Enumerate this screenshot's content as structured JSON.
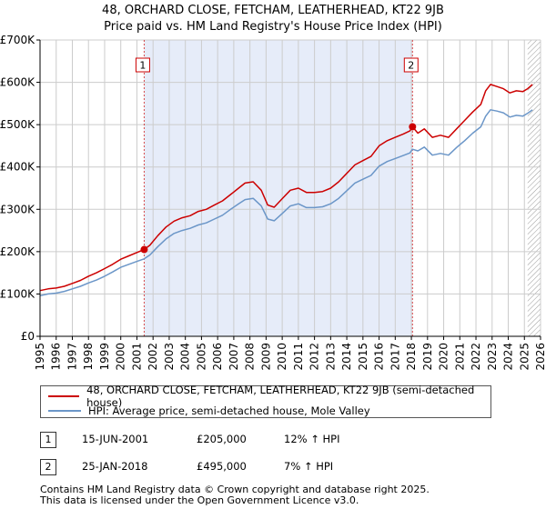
{
  "title": "48, ORCHARD CLOSE, FETCHAM, LEATHERHEAD, KT22 9JB",
  "subtitle": "Price paid vs. HM Land Registry's House Price Index (HPI)",
  "colors": {
    "property": "#cc0000",
    "hpi": "#6b96c8",
    "shade": "#e6ecf9",
    "grid": "#cccccc",
    "hatch": "#999999"
  },
  "chart_data": {
    "type": "line",
    "xlabel": "",
    "ylabel": "",
    "xlim": [
      1995,
      2026
    ],
    "ylim": [
      0,
      700000
    ],
    "y_ticks": [
      {
        "value": 0,
        "label": "£0"
      },
      {
        "value": 100000,
        "label": "£100K"
      },
      {
        "value": 200000,
        "label": "£200K"
      },
      {
        "value": 300000,
        "label": "£300K"
      },
      {
        "value": 400000,
        "label": "£400K"
      },
      {
        "value": 500000,
        "label": "£500K"
      },
      {
        "value": 600000,
        "label": "£600K"
      },
      {
        "value": 700000,
        "label": "£700K"
      }
    ],
    "x_ticks": [
      "1995",
      "1996",
      "1997",
      "1998",
      "1999",
      "2000",
      "2001",
      "2002",
      "2003",
      "2004",
      "2005",
      "2006",
      "2007",
      "2008",
      "2009",
      "2010",
      "2011",
      "2012",
      "2013",
      "2014",
      "2015",
      "2016",
      "2017",
      "2018",
      "2019",
      "2020",
      "2021",
      "2022",
      "2023",
      "2024",
      "2025",
      "2026"
    ],
    "shaded_region": [
      2001.45,
      2018.07
    ],
    "forecast_from": 2025.2,
    "series": [
      {
        "name": "48, ORCHARD CLOSE, FETCHAM, LEATHERHEAD, KT22 9JB (semi-detached house)",
        "color": "#cc0000",
        "x": [
          1995.0,
          1995.5,
          1996.0,
          1996.5,
          1997.0,
          1997.5,
          1998.0,
          1998.5,
          1999.0,
          1999.5,
          2000.0,
          2000.5,
          2001.0,
          2001.45,
          2001.8,
          2002.3,
          2002.8,
          2003.3,
          2003.8,
          2004.3,
          2004.8,
          2005.3,
          2005.8,
          2006.3,
          2006.8,
          2007.3,
          2007.7,
          2008.2,
          2008.7,
          2009.1,
          2009.5,
          2010.0,
          2010.5,
          2011.0,
          2011.5,
          2012.0,
          2012.5,
          2013.0,
          2013.5,
          2014.0,
          2014.5,
          2015.0,
          2015.5,
          2016.0,
          2016.5,
          2017.0,
          2017.5,
          2017.9,
          2018.07,
          2018.4,
          2018.8,
          2019.3,
          2019.8,
          2020.3,
          2020.8,
          2021.3,
          2021.8,
          2022.3,
          2022.6,
          2022.9,
          2023.3,
          2023.7,
          2024.1,
          2024.5,
          2024.9,
          2025.2,
          2025.5
        ],
        "y": [
          108000,
          112000,
          114000,
          118000,
          125000,
          132000,
          142000,
          150000,
          160000,
          170000,
          182000,
          190000,
          198000,
          205000,
          215000,
          238000,
          258000,
          272000,
          280000,
          285000,
          295000,
          300000,
          310000,
          320000,
          335000,
          350000,
          362000,
          365000,
          345000,
          310000,
          305000,
          325000,
          345000,
          350000,
          340000,
          340000,
          342000,
          350000,
          365000,
          385000,
          405000,
          415000,
          425000,
          450000,
          462000,
          470000,
          478000,
          485000,
          495000,
          480000,
          490000,
          470000,
          475000,
          470000,
          490000,
          510000,
          530000,
          548000,
          580000,
          595000,
          590000,
          585000,
          575000,
          580000,
          578000,
          585000,
          595000
        ]
      },
      {
        "name": "HPI: Average price, semi-detached house, Mole Valley",
        "color": "#6b96c8",
        "x": [
          1995.0,
          1995.5,
          1996.0,
          1996.5,
          1997.0,
          1997.5,
          1998.0,
          1998.5,
          1999.0,
          1999.5,
          2000.0,
          2000.5,
          2001.0,
          2001.45,
          2001.8,
          2002.3,
          2002.8,
          2003.3,
          2003.8,
          2004.3,
          2004.8,
          2005.3,
          2005.8,
          2006.3,
          2006.8,
          2007.3,
          2007.7,
          2008.2,
          2008.7,
          2009.1,
          2009.5,
          2010.0,
          2010.5,
          2011.0,
          2011.5,
          2012.0,
          2012.5,
          2013.0,
          2013.5,
          2014.0,
          2014.5,
          2015.0,
          2015.5,
          2016.0,
          2016.5,
          2017.0,
          2017.5,
          2017.9,
          2018.07,
          2018.4,
          2018.8,
          2019.3,
          2019.8,
          2020.3,
          2020.8,
          2021.3,
          2021.8,
          2022.3,
          2022.6,
          2022.9,
          2023.3,
          2023.7,
          2024.1,
          2024.5,
          2024.9,
          2025.2,
          2025.5
        ],
        "y": [
          96000,
          100000,
          102000,
          106000,
          112000,
          118000,
          126000,
          133000,
          142000,
          152000,
          163000,
          170000,
          177000,
          183000,
          192000,
          212000,
          230000,
          243000,
          250000,
          255000,
          263000,
          268000,
          277000,
          286000,
          300000,
          313000,
          323000,
          326000,
          308000,
          277000,
          273000,
          290000,
          308000,
          313000,
          304000,
          304000,
          306000,
          313000,
          326000,
          344000,
          362000,
          371000,
          380000,
          402000,
          413000,
          420000,
          427000,
          433000,
          442000,
          438000,
          447000,
          428000,
          432000,
          428000,
          446000,
          462000,
          480000,
          495000,
          520000,
          535000,
          532000,
          528000,
          518000,
          522000,
          520000,
          527000,
          535000
        ]
      }
    ],
    "sales": [
      {
        "id": "1",
        "x": 2001.45,
        "y": 205000
      },
      {
        "id": "2",
        "x": 2018.07,
        "y": 495000
      }
    ]
  },
  "legend": {
    "property_label": "48, ORCHARD CLOSE, FETCHAM, LEATHERHEAD, KT22 9JB (semi-detached house)",
    "hpi_label": "HPI: Average price, semi-detached house, Mole Valley"
  },
  "sales_table": [
    {
      "id": "1",
      "date": "15-JUN-2001",
      "price": "£205,000",
      "hpi_change": "12% ↑ HPI"
    },
    {
      "id": "2",
      "date": "25-JAN-2018",
      "price": "£495,000",
      "hpi_change": "7% ↑ HPI"
    }
  ],
  "footer": {
    "line1": "Contains HM Land Registry data © Crown copyright and database right 2025.",
    "line2": "This data is licensed under the Open Government Licence v3.0."
  }
}
